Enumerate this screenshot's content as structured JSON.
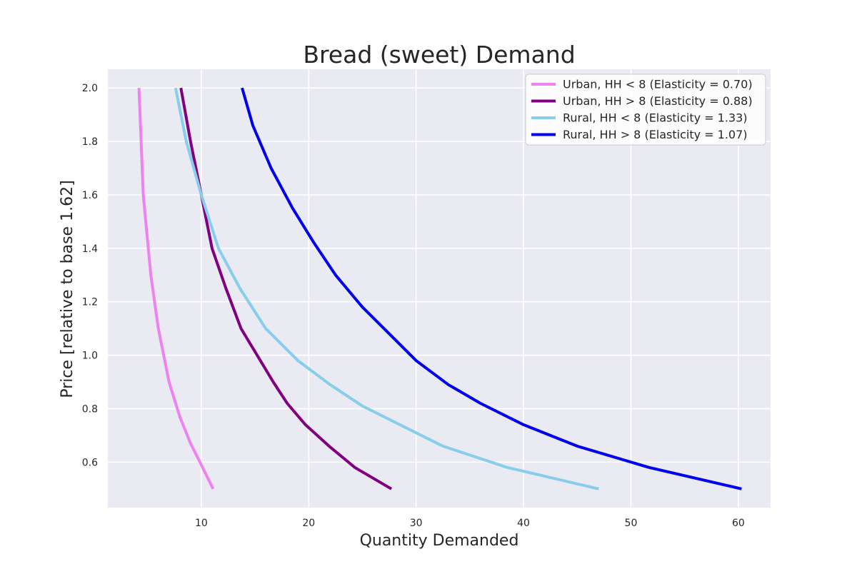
{
  "chart_data": {
    "type": "line",
    "title": "Bread (sweet) Demand",
    "xlabel": "Quantity Demanded",
    "ylabel": "Price [relative to base 1.62]",
    "xlim": [
      1.3,
      63.0
    ],
    "ylim": [
      0.43,
      2.07
    ],
    "xticks": [
      10,
      20,
      30,
      40,
      50,
      60
    ],
    "yticks": [
      0.6,
      0.8,
      1.0,
      1.2,
      1.4,
      1.6,
      1.8,
      2.0
    ],
    "xtick_labels": [
      "10",
      "20",
      "30",
      "40",
      "50",
      "60"
    ],
    "ytick_labels": [
      "0.6",
      "0.8",
      "1.0",
      "1.2",
      "1.4",
      "1.6",
      "1.8",
      "2.0"
    ],
    "grid": true,
    "legend_position": "top-right",
    "background": "#eaeaf2",
    "series": [
      {
        "name": "Urban, HH < 8 (Elasticity = 0.70)",
        "color": "#ee82ee",
        "points": [
          [
            4.2,
            2.0
          ],
          [
            4.6,
            1.6
          ],
          [
            5.3,
            1.3
          ],
          [
            6.0,
            1.1
          ],
          [
            7.0,
            0.9
          ],
          [
            8.0,
            0.77
          ],
          [
            9.0,
            0.67
          ],
          [
            10.0,
            0.59
          ],
          [
            11.1,
            0.5
          ]
        ]
      },
      {
        "name": "Urban, HH > 8 (Elasticity = 0.88)",
        "color": "#800080",
        "points": [
          [
            8.1,
            2.0
          ],
          [
            9.0,
            1.8
          ],
          [
            10.0,
            1.6
          ],
          [
            11.0,
            1.4
          ],
          [
            12.3,
            1.25
          ],
          [
            13.7,
            1.1
          ],
          [
            15.2,
            1.0
          ],
          [
            16.7,
            0.9
          ],
          [
            18.0,
            0.82
          ],
          [
            19.7,
            0.74
          ],
          [
            21.9,
            0.66
          ],
          [
            24.3,
            0.58
          ],
          [
            27.7,
            0.5
          ]
        ]
      },
      {
        "name": "Rural, HH < 8  (Elasticity = 1.33)",
        "color": "#87ceeb",
        "points": [
          [
            7.6,
            2.0
          ],
          [
            8.6,
            1.8
          ],
          [
            10.0,
            1.6
          ],
          [
            11.6,
            1.4
          ],
          [
            13.6,
            1.25
          ],
          [
            16.0,
            1.1
          ],
          [
            19.0,
            0.98
          ],
          [
            22.0,
            0.89
          ],
          [
            25.0,
            0.81
          ],
          [
            28.5,
            0.74
          ],
          [
            32.5,
            0.66
          ],
          [
            38.5,
            0.58
          ],
          [
            47.0,
            0.5
          ]
        ]
      },
      {
        "name": "Rural, HH > 8 (Elasticity = 1.07)",
        "color": "#0000ee",
        "points": [
          [
            13.8,
            2.0
          ],
          [
            14.8,
            1.86
          ],
          [
            16.5,
            1.7
          ],
          [
            18.5,
            1.55
          ],
          [
            20.5,
            1.42
          ],
          [
            22.5,
            1.3
          ],
          [
            25.0,
            1.18
          ],
          [
            28.0,
            1.06
          ],
          [
            30.0,
            0.98
          ],
          [
            33.0,
            0.89
          ],
          [
            36.0,
            0.82
          ],
          [
            40.0,
            0.74
          ],
          [
            45.0,
            0.66
          ],
          [
            51.7,
            0.58
          ],
          [
            60.3,
            0.5
          ]
        ]
      }
    ]
  }
}
